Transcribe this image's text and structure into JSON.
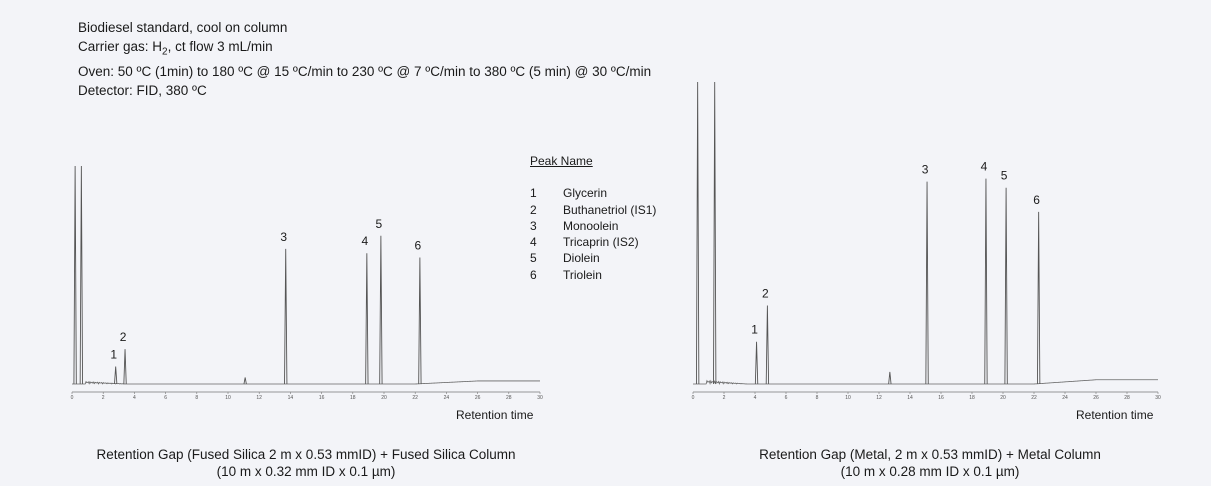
{
  "conditions": {
    "line1": "Biodiesel standard, cool on column",
    "line2_prefix": "Carrier gas: H",
    "line2_sub": "2",
    "line2_suffix": ", ct flow 3 mL/min",
    "line3": "Oven: 50 ºC (1min) to 180 ºC @ 15 ºC/min  to 230 ºC @ 7 ºC/min to 380 ºC (5 min) @ 30 ºC/min",
    "line4": "Detector: FID, 380 ºC"
  },
  "legend": {
    "title": "Peak Name",
    "items": [
      {
        "num": "1",
        "name": "Glycerin"
      },
      {
        "num": "2",
        "name": "Buthanetriol (IS1)"
      },
      {
        "num": "3",
        "name": "Monoolein"
      },
      {
        "num": "4",
        "name": "Tricaprin (IS2)"
      },
      {
        "num": "5",
        "name": "Diolein"
      },
      {
        "num": "6",
        "name": "Triolein"
      }
    ]
  },
  "chart_data": [
    {
      "type": "line",
      "xlabel": "Retention time",
      "caption_line1": "Retention Gap (Fused Silica 2 m x 0.53 mmID) + Fused Silica Column",
      "caption_line2": "(10 m x 0.32 mm ID x 0.1  µm)",
      "xlim": [
        0,
        30
      ],
      "ticks": [
        0,
        2,
        4,
        6,
        8,
        10,
        12,
        14,
        16,
        18,
        20,
        22,
        24,
        26,
        28,
        30
      ],
      "ylim": [
        0,
        100
      ],
      "peaks": [
        {
          "label": "",
          "x": 0.2,
          "y": 100
        },
        {
          "label": "",
          "x": 0.6,
          "y": 100
        },
        {
          "label": "1",
          "x": 2.8,
          "y": 8
        },
        {
          "label": "2",
          "x": 3.4,
          "y": 16
        },
        {
          "label": "",
          "x": 11.1,
          "y": 3
        },
        {
          "label": "3",
          "x": 13.7,
          "y": 62
        },
        {
          "label": "4",
          "x": 18.9,
          "y": 60
        },
        {
          "label": "5",
          "x": 19.8,
          "y": 68
        },
        {
          "label": "6",
          "x": 22.3,
          "y": 58
        }
      ]
    },
    {
      "type": "line",
      "xlabel": "Retention time",
      "caption_line1": "Retention Gap (Metal, 2 m x 0.53 mmID) + Metal Column",
      "caption_line2": "(10 m x 0.28 mm ID x 0.1 µm)",
      "xlim": [
        0,
        30
      ],
      "ticks": [
        0,
        2,
        4,
        6,
        8,
        10,
        12,
        14,
        16,
        18,
        20,
        22,
        24,
        26,
        28,
        30
      ],
      "ylim": [
        0,
        100
      ],
      "peaks": [
        {
          "label": "",
          "x": 0.3,
          "y": 100
        },
        {
          "label": "",
          "x": 1.4,
          "y": 100
        },
        {
          "label": "1",
          "x": 4.1,
          "y": 14
        },
        {
          "label": "2",
          "x": 4.8,
          "y": 26
        },
        {
          "label": "",
          "x": 12.7,
          "y": 4
        },
        {
          "label": "3",
          "x": 15.1,
          "y": 67
        },
        {
          "label": "4",
          "x": 18.9,
          "y": 68
        },
        {
          "label": "5",
          "x": 20.2,
          "y": 65
        },
        {
          "label": "6",
          "x": 22.3,
          "y": 57
        }
      ]
    }
  ]
}
